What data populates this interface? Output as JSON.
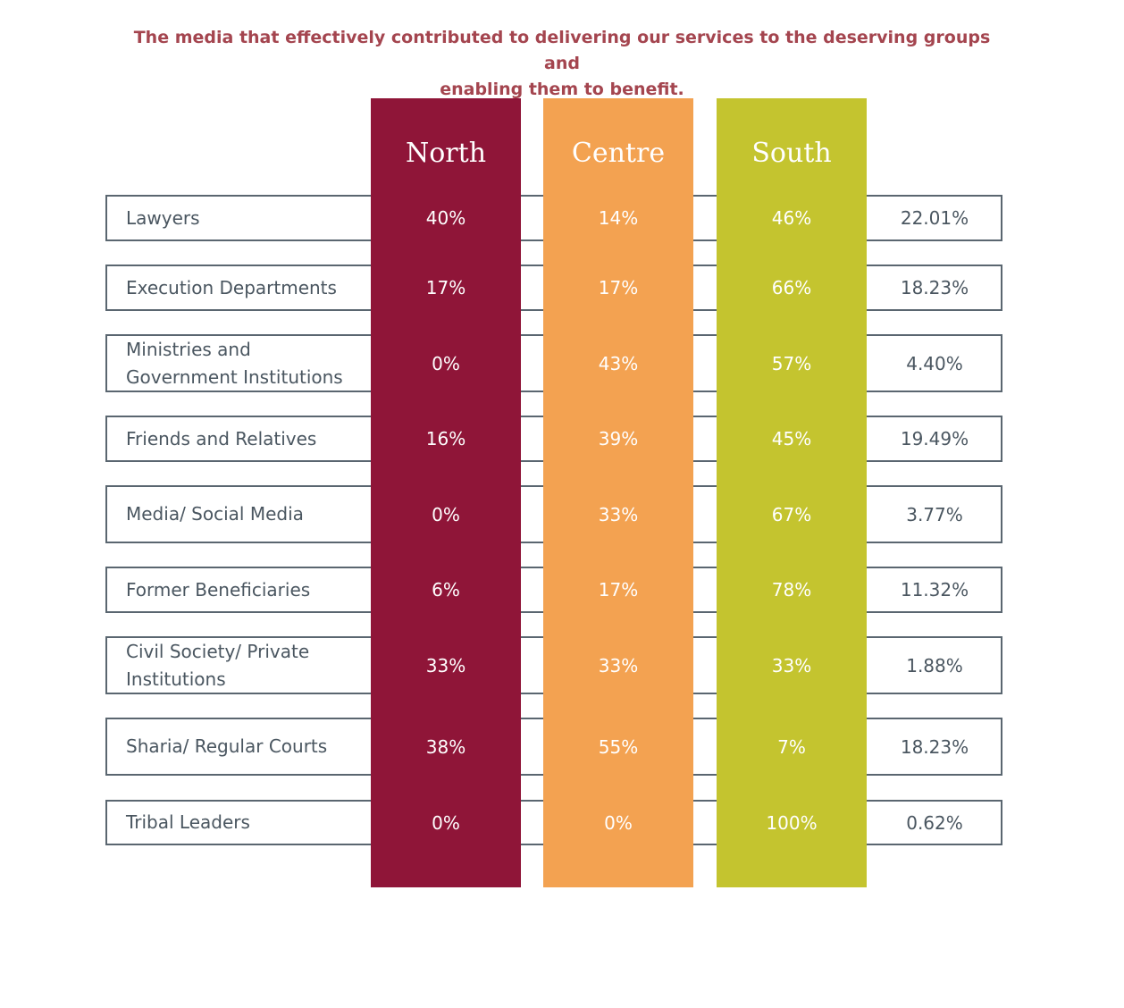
{
  "title_lines": [
    "The media that effectively contributed to delivering our services to the deserving groups and",
    "enabling them to benefit."
  ],
  "colors": {
    "north": "#8f1538",
    "centre": "#f3a251",
    "south": "#c4c42f",
    "frame": "#5a6670",
    "title": "#a4454f"
  },
  "chart_data": {
    "type": "table",
    "columns": [
      "North",
      "Centre",
      "South",
      ""
    ],
    "rows": [
      {
        "label": "Lawyers",
        "north": "40%",
        "centre": "14%",
        "south": "46%",
        "total": "22.01%"
      },
      {
        "label": "Execution Departments",
        "north": "17%",
        "centre": "17%",
        "south": "66%",
        "total": "18.23%"
      },
      {
        "label": "Ministries and Government Institutions",
        "label_lines": [
          "Ministries and",
          "Government Institutions"
        ],
        "north": "0%",
        "centre": "43%",
        "south": "57%",
        "total": "4.40%"
      },
      {
        "label": "Friends and Relatives",
        "north": "16%",
        "centre": "39%",
        "south": "45%",
        "total": "19.49%"
      },
      {
        "label": "Media/ Social Media",
        "north": "0%",
        "centre": "33%",
        "south": "67%",
        "total": "3.77%"
      },
      {
        "label": "Former Beneficiaries",
        "north": "6%",
        "centre": "17%",
        "south": "78%",
        "total": "11.32%"
      },
      {
        "label": "Civil Society/ Private Institutions",
        "label_lines": [
          "Civil Society/ Private",
          "Institutions"
        ],
        "north": "33%",
        "centre": "33%",
        "south": "33%",
        "total": "1.88%"
      },
      {
        "label": "Sharia/ Regular Courts",
        "north": "38%",
        "centre": "55%",
        "south": "7%",
        "total": "18.23%"
      },
      {
        "label": "Tribal Leaders",
        "north": "0%",
        "centre": "0%",
        "south": "100%",
        "total": "0.62%"
      }
    ]
  }
}
